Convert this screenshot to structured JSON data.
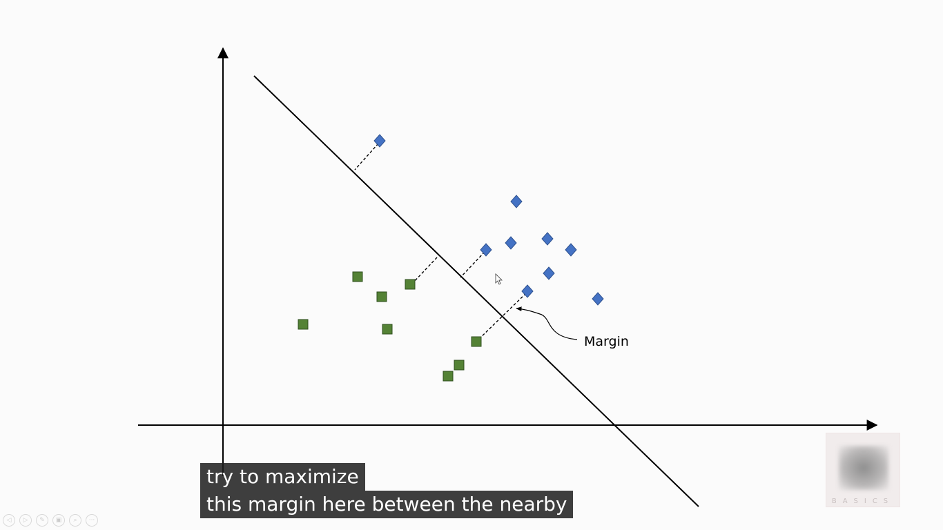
{
  "diagram": {
    "annotation_label": "Margin",
    "class_a_color": "#4472c4",
    "class_b_color": "#548235",
    "line_color": "#000000"
  },
  "captions": {
    "line1": "try to maximize",
    "line2": "this margin here between the nearby"
  },
  "player": {
    "controls": [
      {
        "icon": "previous-icon",
        "glyph": "◁"
      },
      {
        "icon": "next-icon",
        "glyph": "▷"
      },
      {
        "icon": "pen-icon",
        "glyph": "✎"
      },
      {
        "icon": "slides-icon",
        "glyph": "▣"
      },
      {
        "icon": "zoom-icon",
        "glyph": "⌕"
      },
      {
        "icon": "more-icon",
        "glyph": "···"
      }
    ]
  },
  "watermark": {
    "text": "BASICS"
  }
}
